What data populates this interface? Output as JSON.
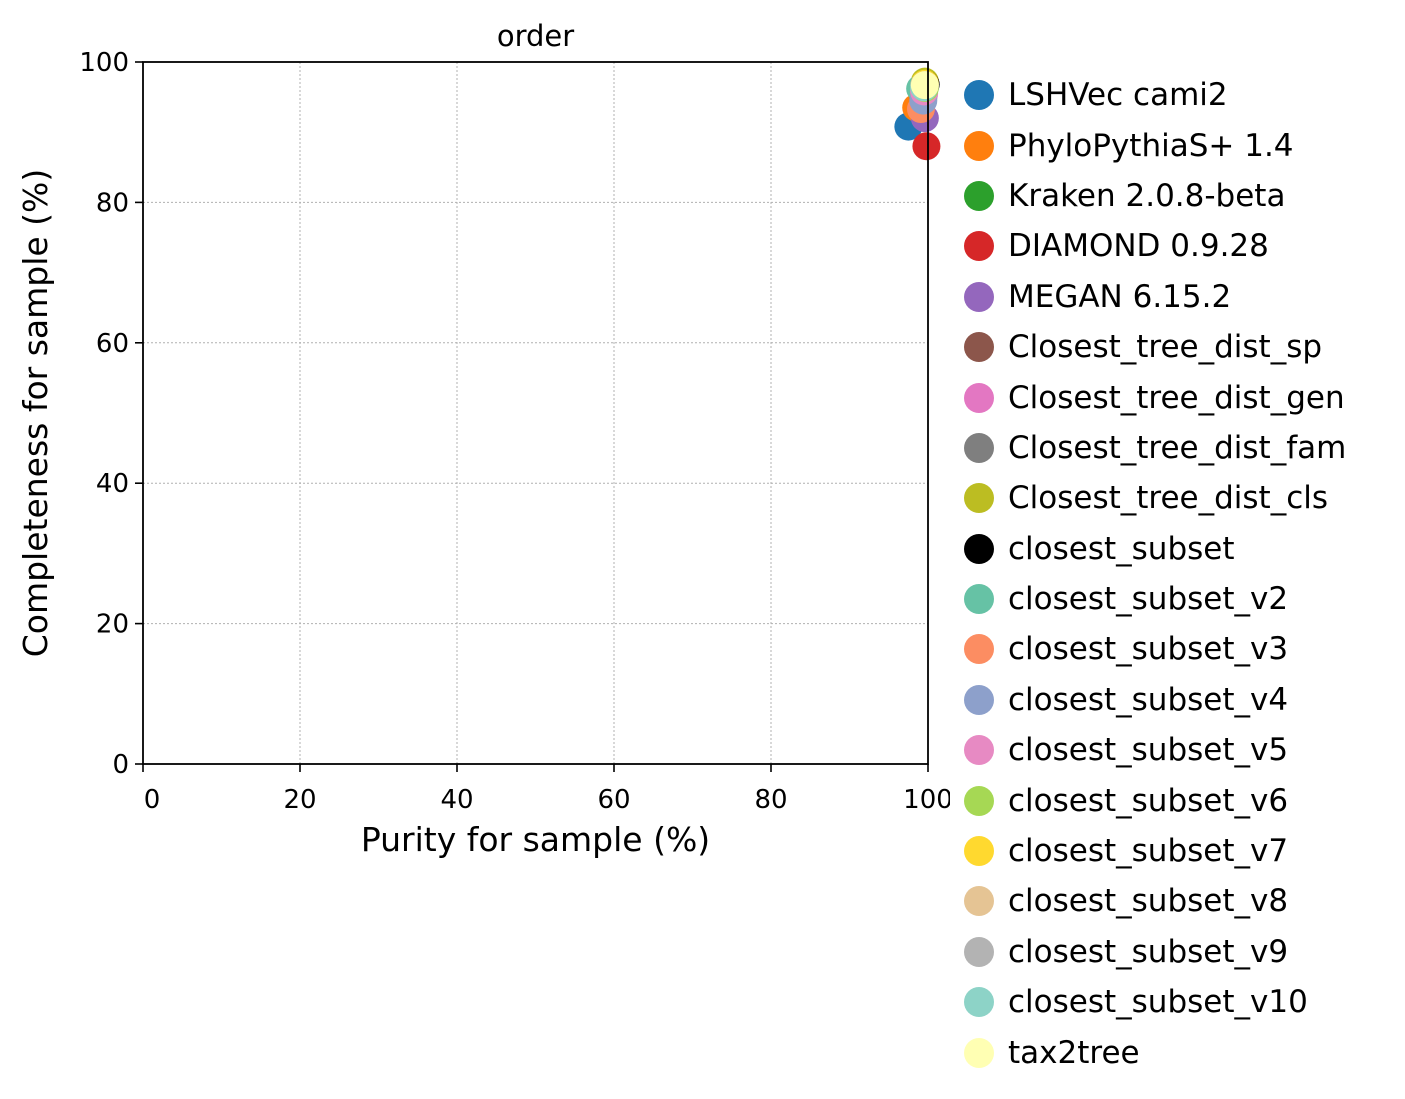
{
  "chart_data": {
    "type": "scatter",
    "title": "order",
    "xlabel": "Purity for sample (%)",
    "ylabel": "Completeness for sample (%)",
    "xlim": [
      0,
      100
    ],
    "ylim": [
      0,
      100
    ],
    "xticks": [
      "0",
      "20",
      "40",
      "60",
      "80",
      "100"
    ],
    "yticks": [
      "0",
      "20",
      "40",
      "60",
      "80",
      "100"
    ],
    "grid": true,
    "legend_position": "outside-right",
    "series": [
      {
        "name": "LSHVec cami2",
        "color": "#1f77b4",
        "x": 97.5,
        "y": 90.8
      },
      {
        "name": "PhyloPythiaS+ 1.4",
        "color": "#ff7f0e",
        "x": 98.5,
        "y": 93.5
      },
      {
        "name": "Kraken 2.0.8-beta",
        "color": "#2ca02c",
        "x": 99.2,
        "y": 96.0
      },
      {
        "name": "DIAMOND 0.9.28",
        "color": "#d62728",
        "x": 99.8,
        "y": 88.0
      },
      {
        "name": "MEGAN 6.15.2",
        "color": "#9467bd",
        "x": 99.6,
        "y": 92.0
      },
      {
        "name": "Closest_tree_dist_sp",
        "color": "#8c564b",
        "x": 99.4,
        "y": 95.0
      },
      {
        "name": "Closest_tree_dist_gen",
        "color": "#e377c2",
        "x": 99.5,
        "y": 95.5
      },
      {
        "name": "Closest_tree_dist_fam",
        "color": "#7f7f7f",
        "x": 99.3,
        "y": 96.5
      },
      {
        "name": "Closest_tree_dist_cls",
        "color": "#bcbd22",
        "x": 99.6,
        "y": 97.2
      },
      {
        "name": "closest_subset",
        "color": "#000000",
        "x": 99.7,
        "y": 96.8
      },
      {
        "name": "closest_subset_v2",
        "color": "#66c2a5",
        "x": 99.0,
        "y": 96.2
      },
      {
        "name": "closest_subset_v3",
        "color": "#fc8d62",
        "x": 99.1,
        "y": 93.3
      },
      {
        "name": "closest_subset_v4",
        "color": "#8da0cb",
        "x": 99.4,
        "y": 94.5
      },
      {
        "name": "closest_subset_v5",
        "color": "#e78ac3",
        "x": 99.5,
        "y": 95.8
      },
      {
        "name": "closest_subset_v6",
        "color": "#a6d854",
        "x": 99.6,
        "y": 96.3
      },
      {
        "name": "closest_subset_v7",
        "color": "#ffd92f",
        "x": 99.6,
        "y": 96.9
      },
      {
        "name": "closest_subset_v8",
        "color": "#e5c494",
        "x": 99.5,
        "y": 96.6
      },
      {
        "name": "closest_subset_v9",
        "color": "#b3b3b3",
        "x": 99.6,
        "y": 96.7
      },
      {
        "name": "closest_subset_v10",
        "color": "#8dd3c7",
        "x": 99.5,
        "y": 96.4
      },
      {
        "name": "tax2tree",
        "color": "#ffffb3",
        "x": 99.6,
        "y": 96.7
      }
    ]
  }
}
